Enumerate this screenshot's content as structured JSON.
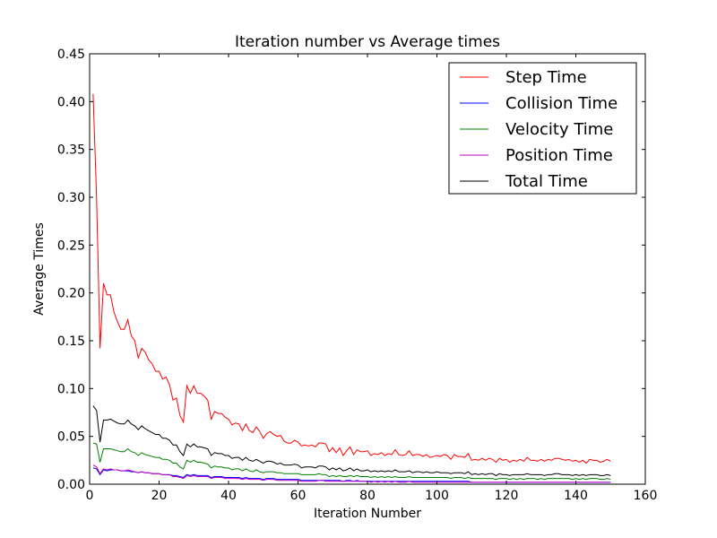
{
  "chart_data": {
    "type": "line",
    "title": "Iteration number vs Average times",
    "xlabel": "Iteration Number",
    "ylabel": "Average Times",
    "xlim": [
      0,
      160
    ],
    "ylim": [
      0,
      0.45
    ],
    "xticks": [
      0,
      20,
      40,
      60,
      80,
      100,
      120,
      140,
      160
    ],
    "xtick_labels": [
      "0",
      "20",
      "40",
      "60",
      "80",
      "100",
      "120",
      "140",
      "160"
    ],
    "yticks": [
      0,
      0.05,
      0.1,
      0.15,
      0.2,
      0.25,
      0.3,
      0.35,
      0.4,
      0.45
    ],
    "ytick_labels": [
      "0.00",
      "0.05",
      "0.10",
      "0.15",
      "0.20",
      "0.25",
      "0.30",
      "0.35",
      "0.40",
      "0.45"
    ],
    "grid": false,
    "legend_position": "top-right",
    "x": [
      1,
      2,
      3,
      4,
      5,
      6,
      7,
      8,
      9,
      10,
      11,
      12,
      13,
      14,
      15,
      16,
      17,
      18,
      19,
      20,
      21,
      22,
      23,
      24,
      25,
      26,
      27,
      28,
      29,
      30,
      31,
      32,
      33,
      34,
      35,
      36,
      37,
      38,
      39,
      40,
      41,
      42,
      43,
      44,
      45,
      46,
      47,
      48,
      49,
      50,
      51,
      52,
      53,
      54,
      55,
      56,
      57,
      58,
      59,
      60,
      61,
      62,
      63,
      64,
      65,
      66,
      67,
      68,
      69,
      70,
      71,
      72,
      73,
      74,
      75,
      76,
      77,
      78,
      79,
      80,
      81,
      82,
      83,
      84,
      85,
      86,
      87,
      88,
      89,
      90,
      91,
      92,
      93,
      94,
      95,
      96,
      97,
      98,
      99,
      100,
      101,
      102,
      103,
      104,
      105,
      106,
      107,
      108,
      109,
      110,
      111,
      112,
      113,
      114,
      115,
      116,
      117,
      118,
      119,
      120,
      121,
      122,
      123,
      124,
      125,
      126,
      127,
      128,
      129,
      130,
      131,
      132,
      133,
      134,
      135,
      136,
      137,
      138,
      139,
      140,
      141,
      142,
      143,
      144,
      145,
      146,
      147,
      148,
      149,
      150
    ],
    "series": [
      {
        "name": "Step Time",
        "color": "#ff0000",
        "values": [
          0.408,
          0.3,
          0.142,
          0.21,
          0.198,
          0.198,
          0.18,
          0.17,
          0.162,
          0.162,
          0.172,
          0.155,
          0.15,
          0.132,
          0.142,
          0.138,
          0.13,
          0.126,
          0.118,
          0.118,
          0.11,
          0.112,
          0.104,
          0.088,
          0.09,
          0.072,
          0.065,
          0.103,
          0.095,
          0.103,
          0.095,
          0.095,
          0.092,
          0.088,
          0.068,
          0.076,
          0.074,
          0.074,
          0.07,
          0.068,
          0.062,
          0.064,
          0.063,
          0.056,
          0.063,
          0.056,
          0.054,
          0.06,
          0.055,
          0.048,
          0.053,
          0.055,
          0.052,
          0.05,
          0.051,
          0.045,
          0.043,
          0.043,
          0.046,
          0.044,
          0.04,
          0.041,
          0.04,
          0.041,
          0.039,
          0.043,
          0.043,
          0.042,
          0.034,
          0.038,
          0.033,
          0.038,
          0.03,
          0.035,
          0.039,
          0.031,
          0.036,
          0.034,
          0.034,
          0.035,
          0.03,
          0.032,
          0.031,
          0.033,
          0.03,
          0.032,
          0.031,
          0.036,
          0.031,
          0.03,
          0.031,
          0.035,
          0.03,
          0.031,
          0.031,
          0.029,
          0.031,
          0.028,
          0.029,
          0.03,
          0.029,
          0.031,
          0.03,
          0.026,
          0.031,
          0.029,
          0.029,
          0.028,
          0.032,
          0.025,
          0.026,
          0.025,
          0.027,
          0.025,
          0.027,
          0.026,
          0.023,
          0.027,
          0.025,
          0.026,
          0.023,
          0.025,
          0.024,
          0.026,
          0.024,
          0.028,
          0.025,
          0.025,
          0.024,
          0.026,
          0.024,
          0.026,
          0.025,
          0.027,
          0.027,
          0.026,
          0.025,
          0.026,
          0.024,
          0.025,
          0.023,
          0.025,
          0.022,
          0.026,
          0.025,
          0.025,
          0.023,
          0.024,
          0.026,
          0.024
        ]
      },
      {
        "name": "Collision Time",
        "color": "#0000ff",
        "values": [
          0.017,
          0.016,
          0.01,
          0.015,
          0.014,
          0.015,
          0.015,
          0.015,
          0.014,
          0.014,
          0.014,
          0.013,
          0.013,
          0.012,
          0.013,
          0.012,
          0.012,
          0.011,
          0.011,
          0.011,
          0.01,
          0.01,
          0.01,
          0.009,
          0.009,
          0.008,
          0.007,
          0.01,
          0.009,
          0.01,
          0.009,
          0.009,
          0.009,
          0.009,
          0.007,
          0.008,
          0.008,
          0.008,
          0.007,
          0.007,
          0.007,
          0.007,
          0.007,
          0.006,
          0.007,
          0.006,
          0.006,
          0.006,
          0.006,
          0.005,
          0.006,
          0.006,
          0.006,
          0.005,
          0.005,
          0.005,
          0.005,
          0.005,
          0.005,
          0.005,
          0.004,
          0.004,
          0.004,
          0.004,
          0.004,
          0.004,
          0.004,
          0.004,
          0.004,
          0.004,
          0.004,
          0.004,
          0.003,
          0.004,
          0.004,
          0.003,
          0.004,
          0.003,
          0.003,
          0.003,
          0.003,
          0.003,
          0.003,
          0.003,
          0.003,
          0.003,
          0.003,
          0.003,
          0.003,
          0.003,
          0.003,
          0.003,
          0.003,
          0.003,
          0.003,
          0.003,
          0.003,
          0.003,
          0.003,
          0.003,
          0.003,
          0.003,
          0.003,
          0.003,
          0.003,
          0.003,
          0.003,
          0.003,
          0.003,
          0.002,
          0.002,
          0.002,
          0.002,
          0.002,
          0.002,
          0.002,
          0.002,
          0.002,
          0.002,
          0.002,
          0.002,
          0.002,
          0.002,
          0.002,
          0.002,
          0.002,
          0.002,
          0.002,
          0.002,
          0.002,
          0.002,
          0.002,
          0.002,
          0.002,
          0.002,
          0.002,
          0.002,
          0.002,
          0.002,
          0.002,
          0.002,
          0.002,
          0.002,
          0.002,
          0.002,
          0.002,
          0.002,
          0.002,
          0.002,
          0.002
        ]
      },
      {
        "name": "Velocity Time",
        "color": "#008000",
        "values": [
          0.043,
          0.042,
          0.023,
          0.037,
          0.037,
          0.037,
          0.036,
          0.035,
          0.034,
          0.034,
          0.037,
          0.034,
          0.033,
          0.03,
          0.033,
          0.031,
          0.03,
          0.029,
          0.028,
          0.028,
          0.026,
          0.026,
          0.025,
          0.022,
          0.022,
          0.018,
          0.016,
          0.025,
          0.023,
          0.025,
          0.023,
          0.023,
          0.022,
          0.021,
          0.017,
          0.019,
          0.018,
          0.018,
          0.017,
          0.017,
          0.015,
          0.016,
          0.016,
          0.014,
          0.016,
          0.014,
          0.013,
          0.015,
          0.013,
          0.012,
          0.013,
          0.013,
          0.013,
          0.012,
          0.012,
          0.011,
          0.011,
          0.011,
          0.011,
          0.011,
          0.01,
          0.01,
          0.01,
          0.01,
          0.01,
          0.011,
          0.01,
          0.01,
          0.008,
          0.009,
          0.008,
          0.009,
          0.008,
          0.008,
          0.009,
          0.008,
          0.009,
          0.008,
          0.008,
          0.008,
          0.007,
          0.008,
          0.007,
          0.008,
          0.007,
          0.008,
          0.007,
          0.008,
          0.007,
          0.007,
          0.007,
          0.008,
          0.007,
          0.007,
          0.007,
          0.007,
          0.007,
          0.007,
          0.007,
          0.007,
          0.007,
          0.007,
          0.007,
          0.006,
          0.007,
          0.007,
          0.007,
          0.006,
          0.007,
          0.006,
          0.006,
          0.006,
          0.006,
          0.006,
          0.006,
          0.006,
          0.005,
          0.006,
          0.006,
          0.006,
          0.005,
          0.006,
          0.005,
          0.006,
          0.005,
          0.006,
          0.006,
          0.006,
          0.005,
          0.006,
          0.005,
          0.006,
          0.006,
          0.006,
          0.006,
          0.006,
          0.006,
          0.006,
          0.005,
          0.006,
          0.005,
          0.006,
          0.005,
          0.006,
          0.006,
          0.006,
          0.005,
          0.005,
          0.006,
          0.005
        ]
      },
      {
        "name": "Position Time",
        "color": "#bf00bf",
        "values": [
          0.02,
          0.018,
          0.011,
          0.016,
          0.015,
          0.016,
          0.015,
          0.015,
          0.014,
          0.014,
          0.015,
          0.014,
          0.013,
          0.012,
          0.013,
          0.012,
          0.012,
          0.011,
          0.011,
          0.011,
          0.01,
          0.01,
          0.01,
          0.008,
          0.008,
          0.007,
          0.006,
          0.009,
          0.008,
          0.009,
          0.008,
          0.008,
          0.008,
          0.008,
          0.006,
          0.007,
          0.007,
          0.007,
          0.006,
          0.006,
          0.006,
          0.006,
          0.006,
          0.005,
          0.006,
          0.005,
          0.005,
          0.005,
          0.005,
          0.004,
          0.005,
          0.005,
          0.005,
          0.004,
          0.004,
          0.004,
          0.004,
          0.004,
          0.004,
          0.004,
          0.003,
          0.003,
          0.003,
          0.003,
          0.003,
          0.004,
          0.004,
          0.003,
          0.003,
          0.003,
          0.003,
          0.003,
          0.003,
          0.003,
          0.003,
          0.003,
          0.003,
          0.003,
          0.003,
          0.003,
          0.002,
          0.003,
          0.002,
          0.003,
          0.002,
          0.003,
          0.002,
          0.003,
          0.002,
          0.002,
          0.002,
          0.003,
          0.002,
          0.002,
          0.002,
          0.002,
          0.002,
          0.002,
          0.002,
          0.002,
          0.002,
          0.002,
          0.002,
          0.002,
          0.002,
          0.002,
          0.002,
          0.002,
          0.002,
          0.002,
          0.002,
          0.002,
          0.002,
          0.002,
          0.002,
          0.002,
          0.002,
          0.002,
          0.002,
          0.002,
          0.002,
          0.002,
          0.002,
          0.002,
          0.002,
          0.002,
          0.002,
          0.002,
          0.002,
          0.002,
          0.002,
          0.002,
          0.002,
          0.002,
          0.002,
          0.002,
          0.002,
          0.002,
          0.002,
          0.002,
          0.002,
          0.002,
          0.002,
          0.002,
          0.002,
          0.002,
          0.002,
          0.002,
          0.002,
          0.002
        ]
      },
      {
        "name": "Total Time",
        "color": "#000000",
        "values": [
          0.082,
          0.077,
          0.044,
          0.067,
          0.067,
          0.068,
          0.066,
          0.064,
          0.063,
          0.063,
          0.067,
          0.063,
          0.061,
          0.057,
          0.061,
          0.058,
          0.056,
          0.054,
          0.052,
          0.052,
          0.048,
          0.048,
          0.046,
          0.041,
          0.041,
          0.034,
          0.03,
          0.042,
          0.039,
          0.042,
          0.039,
          0.039,
          0.038,
          0.037,
          0.03,
          0.033,
          0.032,
          0.032,
          0.03,
          0.03,
          0.027,
          0.028,
          0.028,
          0.025,
          0.028,
          0.025,
          0.024,
          0.026,
          0.024,
          0.022,
          0.024,
          0.024,
          0.023,
          0.021,
          0.022,
          0.02,
          0.02,
          0.02,
          0.021,
          0.02,
          0.017,
          0.018,
          0.018,
          0.018,
          0.017,
          0.019,
          0.019,
          0.018,
          0.015,
          0.017,
          0.015,
          0.017,
          0.014,
          0.015,
          0.017,
          0.014,
          0.016,
          0.014,
          0.014,
          0.015,
          0.013,
          0.014,
          0.013,
          0.014,
          0.013,
          0.014,
          0.013,
          0.015,
          0.013,
          0.013,
          0.013,
          0.014,
          0.012,
          0.013,
          0.013,
          0.012,
          0.013,
          0.012,
          0.012,
          0.013,
          0.012,
          0.012,
          0.012,
          0.011,
          0.012,
          0.012,
          0.012,
          0.011,
          0.013,
          0.01,
          0.011,
          0.01,
          0.011,
          0.01,
          0.011,
          0.011,
          0.009,
          0.011,
          0.01,
          0.01,
          0.009,
          0.01,
          0.01,
          0.01,
          0.01,
          0.011,
          0.01,
          0.01,
          0.01,
          0.01,
          0.009,
          0.01,
          0.01,
          0.011,
          0.011,
          0.01,
          0.01,
          0.01,
          0.009,
          0.01,
          0.009,
          0.01,
          0.009,
          0.01,
          0.01,
          0.01,
          0.009,
          0.009,
          0.01,
          0.009
        ]
      }
    ]
  }
}
